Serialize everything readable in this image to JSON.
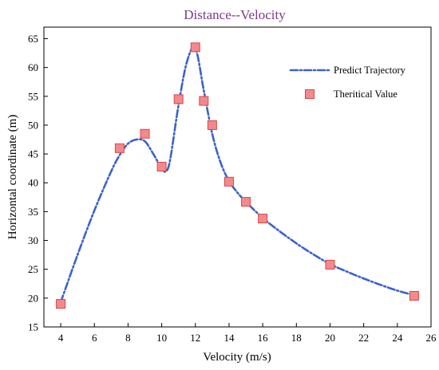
{
  "chart_data": {
    "type": "line",
    "title": "Distance--Velocity",
    "title_color": "#7b3b8c",
    "xlabel": "Velocity (m/s)",
    "ylabel": "Horizontal coordinate (m)",
    "xlim": [
      3,
      26
    ],
    "ylim": [
      15,
      67
    ],
    "x_ticks": [
      4,
      6,
      8,
      10,
      12,
      14,
      16,
      18,
      20,
      22,
      24,
      26
    ],
    "y_ticks": [
      15,
      20,
      25,
      30,
      35,
      40,
      45,
      50,
      55,
      60,
      65
    ],
    "grid": false,
    "legend_position": "top-right",
    "series": [
      {
        "name": "Predict Trajectory",
        "style": "dash-dot line",
        "color": "#3a63c9",
        "x": [
          4,
          5,
          6,
          7,
          7.5,
          8,
          8.5,
          9,
          9.5,
          10,
          10.25,
          10.5,
          11,
          11.5,
          12,
          12.5,
          13,
          13.5,
          14,
          14.5,
          15,
          16,
          17,
          18,
          19,
          20,
          21,
          22,
          23,
          24,
          25
        ],
        "y": [
          19.3,
          27.5,
          35.2,
          42.0,
          44.8,
          46.8,
          47.5,
          47.2,
          45.0,
          42.5,
          42.0,
          44.0,
          53.5,
          61.0,
          63.3,
          56.0,
          48.5,
          43.5,
          40.3,
          38.3,
          36.7,
          33.9,
          31.6,
          29.5,
          27.6,
          25.9,
          24.6,
          23.4,
          22.3,
          21.3,
          20.5
        ]
      },
      {
        "name": "Theritical Value",
        "style": "square markers",
        "color": "#f4898c",
        "edge_color": "#d4484d",
        "x": [
          4,
          7.5,
          9,
          10,
          11,
          12,
          12.5,
          13,
          14,
          15,
          16,
          20,
          25
        ],
        "y": [
          19.0,
          46.0,
          48.5,
          42.8,
          54.5,
          63.5,
          54.2,
          50.0,
          40.2,
          36.7,
          33.8,
          25.8,
          20.4
        ]
      }
    ]
  }
}
